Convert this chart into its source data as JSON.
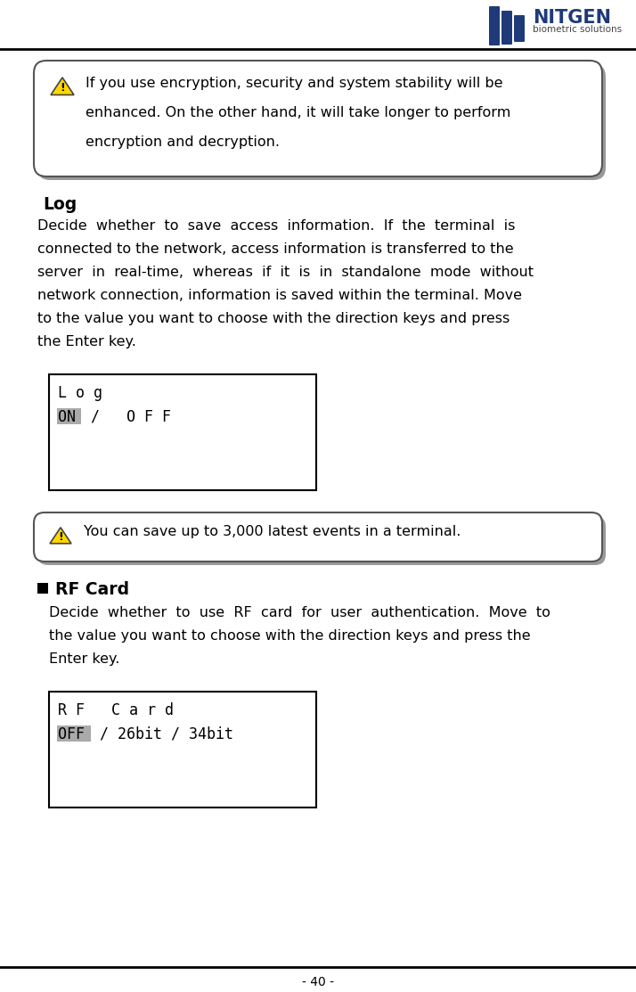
{
  "page_number": "- 40 -",
  "warning_box1_lines": [
    "If you use encryption, security and system stability will be",
    "enhanced. On the other hand, it will take longer to perform",
    "encryption and decryption."
  ],
  "log_heading": "Log",
  "log_body_lines": [
    "Decide  whether  to  save  access  information.  If  the  terminal  is",
    "connected to the network, access information is transferred to the",
    "server  in  real-time,  whereas  if  it  is  in  standalone  mode  without",
    "network connection, information is saved within the terminal. Move",
    "to the value you want to choose with the direction keys and press",
    "the Enter key."
  ],
  "lcd_log_line1": "L o g",
  "lcd_log_line2_hl": "ON",
  "lcd_log_line2_rest": " /   O F F",
  "warning_box2_text": "You can save up to 3,000 latest events in a terminal.",
  "rfcard_heading": "RF Card",
  "rfcard_body_lines": [
    "Decide  whether  to  use  RF  card  for  user  authentication.  Move  to",
    "the value you want to choose with the direction keys and press the",
    "Enter key."
  ],
  "lcd_rf_line1": "R F   C a r d",
  "lcd_rf_line2_hl": "OFF",
  "lcd_rf_line2_rest": " / 26bit / 34bit",
  "bg": "#ffffff",
  "text_color": "#000000",
  "box_edge": "#555555",
  "shadow_color": "#999999",
  "lcd_hl_bg": "#aaaaaa",
  "lcd_hl_fg": "#000000",
  "warn_tri_fill": "#FFD700",
  "warn_tri_edge": "#444444",
  "logo_bar_color": "#1e3a78",
  "logo_text_color": "#1e3a78",
  "logo_sub_color": "#444444",
  "line_color": "#000000",
  "bullet_color": "#000000"
}
